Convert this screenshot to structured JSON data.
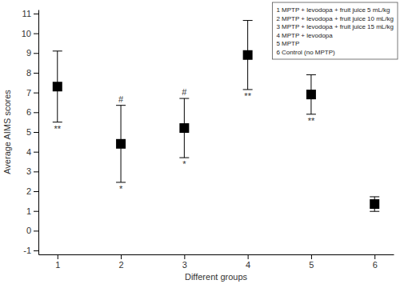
{
  "chart_data": {
    "type": "scatter",
    "x_label": "Different groups",
    "y_label": "Average AIMS scores",
    "x": [
      1,
      2,
      3,
      4,
      5,
      6
    ],
    "values": [
      7.3,
      4.4,
      5.2,
      8.9,
      6.9,
      1.35
    ],
    "errors": [
      1.8,
      1.95,
      1.5,
      1.75,
      1.0,
      0.37
    ],
    "significance_above": [
      null,
      "#",
      "#",
      null,
      null,
      null
    ],
    "significance_below": [
      "**",
      "*",
      "*",
      "**",
      "**",
      null
    ],
    "group_labels": [
      "1 MPTP + levodopa + fruit juice 5 mL/kg",
      "2 MPTP + levodopa + fruit juice 10 mL/kg",
      "3 MPTP + levodopa + fruit juice 15 mL/kg",
      "4 MPTP + levodopa",
      "5 MPTP",
      "6 Control (no MPTP)"
    ],
    "legend": "top-right",
    "marker": "square",
    "color": "#000000",
    "xlim": [
      0.7,
      6.3
    ],
    "xticks": [
      1,
      2,
      3,
      4,
      5,
      6
    ],
    "ylim": [
      -1.2,
      11.2
    ],
    "yticks": [
      -1,
      0,
      1,
      2,
      3,
      4,
      5,
      6,
      7,
      8,
      9,
      10,
      11
    ],
    "grid": false
  }
}
